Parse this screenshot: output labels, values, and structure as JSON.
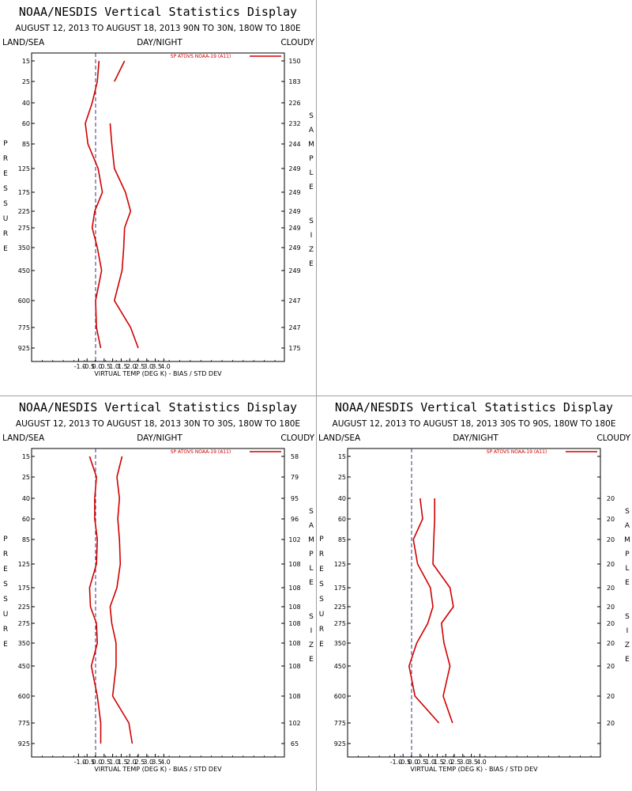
{
  "common": {
    "title": "NOAA/NESDIS Vertical Statistics Display",
    "land_sea_label": "LAND/SEA",
    "day_night_label": "DAY/NIGHT",
    "cloudy_label": "CLOUDY",
    "pressure_label": "PRESSURE",
    "sample_size_label": "SAMPLE SIZE",
    "legend": "SP ATOVS NOAA-19 (A11)",
    "xlabel": "VIRTUAL TEMP (DEG K) - BIAS / STD DEV",
    "x_ticks": [
      "-1.0",
      "-0.5",
      "0.0",
      "0.5",
      "1.0",
      "1.5",
      "2.0",
      "2.5",
      "3.0",
      "3.5",
      "4.0"
    ],
    "y_ticks": [
      "15",
      "25",
      "40",
      "60",
      "85",
      "125",
      "175",
      "225",
      "275",
      "350",
      "450",
      "600",
      "775",
      "925"
    ],
    "line_color": "#d00000"
  },
  "chart_data": [
    {
      "type": "line",
      "subtitle": "AUGUST 12, 2013 TO AUGUST 18, 2013  90N TO 30N, 180W TO 180E",
      "pressure_levels": [
        15,
        25,
        40,
        60,
        85,
        125,
        175,
        225,
        275,
        350,
        450,
        600,
        775,
        925
      ],
      "bias": [
        0.2,
        0.1,
        -0.2,
        -0.6,
        -0.45,
        0.15,
        0.4,
        -0.05,
        -0.2,
        0.1,
        0.35,
        0.0,
        0.05,
        0.3
      ],
      "std_dev": [
        1.7,
        1.1,
        null,
        0.85,
        0.95,
        1.1,
        1.75,
        2.05,
        1.7,
        1.65,
        1.55,
        1.1,
        2.05,
        2.5
      ],
      "sample_size": [
        "150",
        "183",
        "226",
        "232",
        "244",
        "249",
        "249",
        "249",
        "249",
        "249",
        "249",
        "247",
        "247",
        "175"
      ],
      "xlim": [
        -1.5,
        4.5
      ]
    },
    {
      "type": "line",
      "subtitle": "AUGUST 12, 2013 TO AUGUST 18, 2013  30N TO 30S, 180W TO 180E",
      "pressure_levels": [
        15,
        25,
        40,
        60,
        85,
        125,
        175,
        225,
        275,
        350,
        450,
        600,
        775,
        925
      ],
      "bias": [
        -0.35,
        0.05,
        -0.05,
        -0.05,
        0.1,
        0.05,
        -0.35,
        -0.3,
        0.05,
        0.1,
        -0.25,
        0.1,
        0.3,
        0.3
      ],
      "std_dev": [
        1.55,
        1.25,
        1.4,
        1.3,
        1.4,
        1.45,
        1.25,
        0.85,
        0.95,
        1.2,
        1.2,
        1.0,
        1.95,
        2.15
      ],
      "sample_size": [
        "58",
        "79",
        "95",
        "96",
        "102",
        "108",
        "108",
        "108",
        "108",
        "108",
        "108",
        "108",
        "102",
        "65"
      ],
      "xlim": [
        -1.5,
        4.5
      ]
    },
    {
      "type": "line",
      "subtitle": "AUGUST 12, 2013 TO AUGUST 18, 2013  30S TO 90S, 180W TO 180E",
      "pressure_levels": [
        15,
        25,
        40,
        60,
        85,
        125,
        175,
        225,
        275,
        350,
        450,
        600,
        775,
        925
      ],
      "bias": [
        null,
        null,
        0.5,
        0.65,
        0.1,
        0.35,
        1.1,
        1.25,
        0.95,
        0.3,
        -0.15,
        0.2,
        1.6,
        null
      ],
      "std_dev": [
        null,
        null,
        1.35,
        1.35,
        1.3,
        1.25,
        2.25,
        2.45,
        1.75,
        1.9,
        2.25,
        1.85,
        2.4,
        null
      ],
      "sample_size": [
        "",
        "",
        "20",
        "20",
        "20",
        "20",
        "20",
        "20",
        "20",
        "20",
        "20",
        "20",
        "20",
        ""
      ],
      "xlim": [
        -1.5,
        4.5
      ]
    }
  ]
}
